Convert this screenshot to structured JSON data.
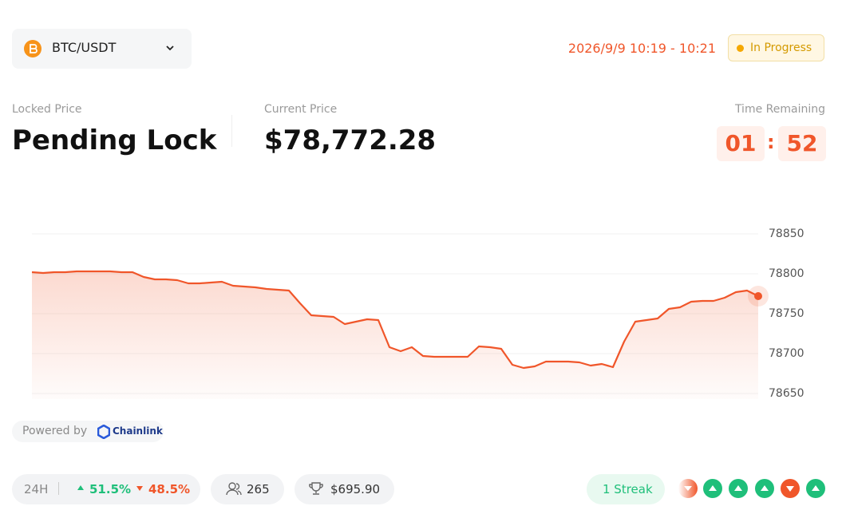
{
  "header": {
    "pair": "BTC/USDT",
    "time_range": "2026/9/9 10:19 - 10:21",
    "status": "In Progress"
  },
  "prices": {
    "locked_label": "Locked Price",
    "locked_value": "Pending Lock",
    "current_label": "Current Price",
    "current_value": "$78,772.28",
    "remaining_label": "Time Remaining",
    "minutes": "01",
    "seconds": "52"
  },
  "chart_data": {
    "type": "line",
    "color": "#f0562a",
    "values": [
      78802,
      78801,
      78802,
      78802,
      78803,
      78803,
      78803,
      78803,
      78802,
      78802,
      78796,
      78793,
      78793,
      78792,
      78788,
      78788,
      78789,
      78790,
      78785,
      78784,
      78783,
      78781,
      78780,
      78779,
      78763,
      78748,
      78747,
      78746,
      78737,
      78740,
      78743,
      78742,
      78708,
      78703,
      78708,
      78697,
      78696,
      78696,
      78696,
      78696,
      78709,
      78708,
      78706,
      78686,
      78682,
      78684,
      78690,
      78690,
      78690,
      78689,
      78685,
      78687,
      78683,
      78715,
      78740,
      78742,
      78744,
      78756,
      78758,
      78765,
      78766,
      78766,
      78770,
      78777,
      78779,
      78772
    ],
    "ylim": [
      78640,
      78860
    ],
    "yticks": [
      78650,
      78700,
      78750,
      78800,
      78850
    ],
    "grid": true
  },
  "source": {
    "powered_by": "Powered by",
    "provider": "Chainlink"
  },
  "footer": {
    "period": "24H",
    "up_share": "51.5%",
    "down_share": "48.5%",
    "players": "265",
    "prize_pool": "$695.90",
    "streak": "1 Streak"
  }
}
